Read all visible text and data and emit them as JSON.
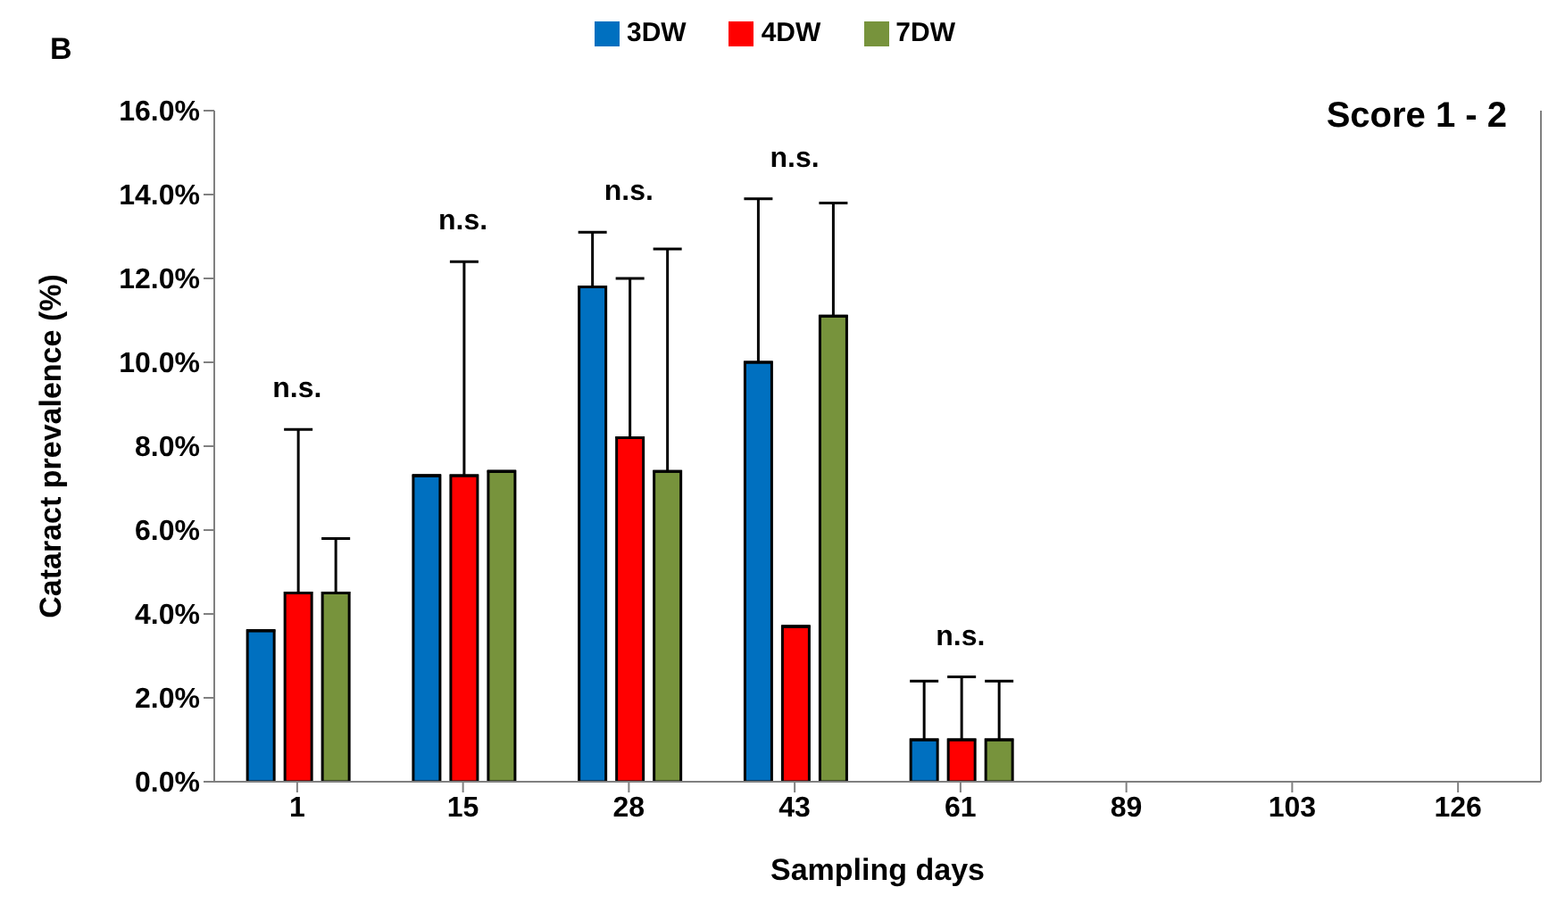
{
  "chart_data": {
    "type": "bar",
    "xlabel": "Sampling days",
    "ylabel": "Cataract prevalence (%)",
    "categories": [
      "1",
      "15",
      "28",
      "43",
      "61",
      "89",
      "103",
      "126"
    ],
    "series": [
      {
        "name": "3DW",
        "color": "#0070c0",
        "values": [
          3.6,
          7.3,
          11.8,
          10.0,
          1.0,
          null,
          null,
          null
        ],
        "errors": [
          null,
          null,
          [
            11.8,
            13.1
          ],
          [
            10.0,
            13.9
          ],
          [
            1.0,
            2.4
          ],
          null,
          null,
          null
        ]
      },
      {
        "name": "4DW",
        "color": "#ff0000",
        "values": [
          4.5,
          7.3,
          8.2,
          3.7,
          1.0,
          null,
          null,
          null
        ],
        "errors": [
          [
            4.5,
            8.4
          ],
          [
            7.3,
            12.4
          ],
          [
            8.2,
            12.0
          ],
          [
            3.7,
            3.7
          ],
          [
            1.0,
            2.5
          ],
          null,
          null,
          null
        ]
      },
      {
        "name": "7DW",
        "color": "#77933c",
        "values": [
          4.5,
          7.4,
          7.4,
          11.1,
          1.0,
          null,
          null,
          null
        ],
        "errors": [
          [
            4.5,
            5.8
          ],
          [
            7.4,
            7.4
          ],
          [
            7.4,
            12.7
          ],
          [
            11.1,
            13.8
          ],
          [
            1.0,
            2.4
          ],
          null,
          null,
          null
        ]
      }
    ],
    "ylim": [
      0,
      16
    ],
    "yticks": [
      {
        "value": 0,
        "label": "0.0%"
      },
      {
        "value": 2,
        "label": "2.0%"
      },
      {
        "value": 4,
        "label": "4.0%"
      },
      {
        "value": 6,
        "label": "6.0%"
      },
      {
        "value": 8,
        "label": "8.0%"
      },
      {
        "value": 10,
        "label": "10.0%"
      },
      {
        "value": 12,
        "label": "12.0%"
      },
      {
        "value": 14,
        "label": "14.0%"
      },
      {
        "value": 16,
        "label": "16.0%"
      }
    ],
    "grid": false,
    "legend": "top",
    "annotations": [
      "B",
      "Score 1 - 2",
      "n.s.",
      "n.s.",
      "n.s.",
      "n.s.",
      "n.s."
    ]
  }
}
